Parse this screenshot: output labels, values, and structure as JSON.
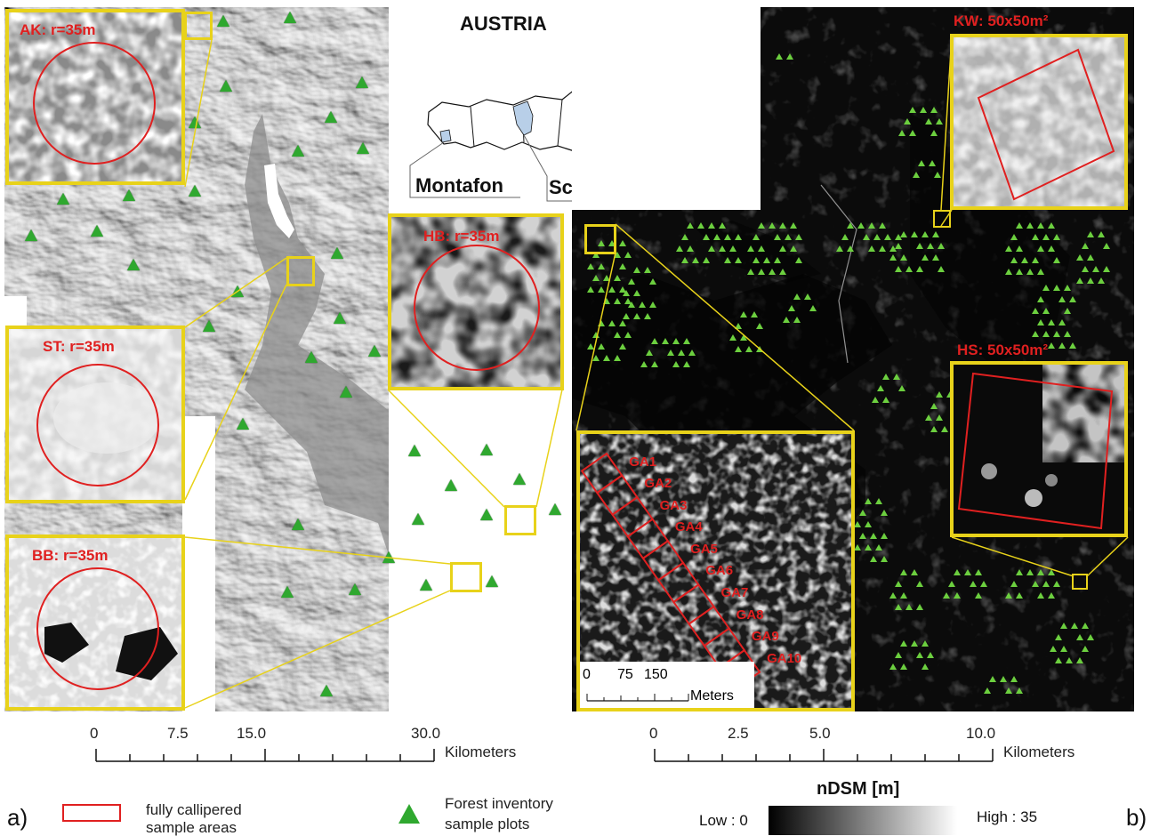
{
  "left_panel": {
    "insets": [
      {
        "id": "AK",
        "label": "AK: r=35m"
      },
      {
        "id": "ST",
        "label": "ST: r=35m"
      },
      {
        "id": "BB",
        "label": "BB: r=35m"
      },
      {
        "id": "HB",
        "label": "HB: r=35m"
      }
    ],
    "scalebar": {
      "ticks": [
        "0",
        "7.5",
        "15.0",
        "30.0"
      ],
      "unit": "Kilometers"
    },
    "panel_label": "a)"
  },
  "austria_map": {
    "title": "AUSTRIA",
    "regions": [
      "Montafon",
      "Schwaz"
    ]
  },
  "right_panel": {
    "insets": [
      {
        "id": "KW",
        "label": "KW: 50x50m²"
      },
      {
        "id": "HS",
        "label": "HS: 50x50m²"
      }
    ],
    "ga_labels": [
      "GA1",
      "GA2",
      "GA3",
      "GA4",
      "GA5",
      "GA6",
      "GA7",
      "GA8",
      "GA9",
      "GA10"
    ],
    "ga_scalebar": {
      "ticks": [
        "0",
        "75",
        "150"
      ],
      "unit": "Meters"
    },
    "scalebar": {
      "ticks": [
        "0",
        "2.5",
        "5.0",
        "10.0"
      ],
      "unit": "Kilometers"
    },
    "panel_label": "b)"
  },
  "legend": {
    "callipered": "fully callipered sample areas",
    "callipered_lines": [
      "fully callipered",
      "sample areas"
    ],
    "inventory_lines": [
      "Forest inventory",
      "sample plots"
    ],
    "ndsm_title": "nDSM [m]",
    "ndsm_low": "Low : 0",
    "ndsm_high": "High : 35"
  },
  "colors": {
    "inset_border": "#e8d21a",
    "callipered": "#e02020",
    "plot_marker": "#2fa82f",
    "highlight_region": "#b8cfe8"
  }
}
